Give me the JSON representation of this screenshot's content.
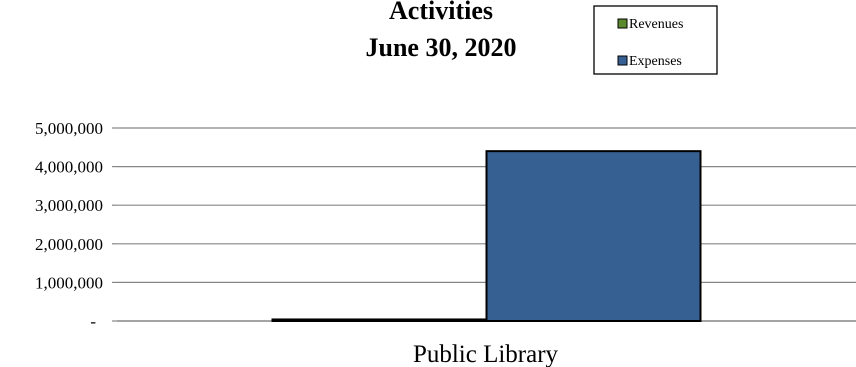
{
  "chart_data": {
    "type": "bar",
    "title_lines": [
      "Activities",
      "June 30, 2020"
    ],
    "categories": [
      "Public Library"
    ],
    "series": [
      {
        "name": "Revenues",
        "values": [
          40000
        ],
        "color": "#5b8a2f"
      },
      {
        "name": "Expenses",
        "values": [
          4400000
        ],
        "color": "#376092"
      }
    ],
    "ylim": [
      0,
      5000000
    ],
    "yticks": [
      {
        "value": 0,
        "label": "-"
      },
      {
        "value": 1000000,
        "label": "1,000,000"
      },
      {
        "value": 2000000,
        "label": "2,000,000"
      },
      {
        "value": 3000000,
        "label": "3,000,000"
      },
      {
        "value": 4000000,
        "label": "4,000,000"
      },
      {
        "value": 5000000,
        "label": "5,000,000"
      }
    ],
    "grid": true,
    "legend_position": "top-right"
  }
}
